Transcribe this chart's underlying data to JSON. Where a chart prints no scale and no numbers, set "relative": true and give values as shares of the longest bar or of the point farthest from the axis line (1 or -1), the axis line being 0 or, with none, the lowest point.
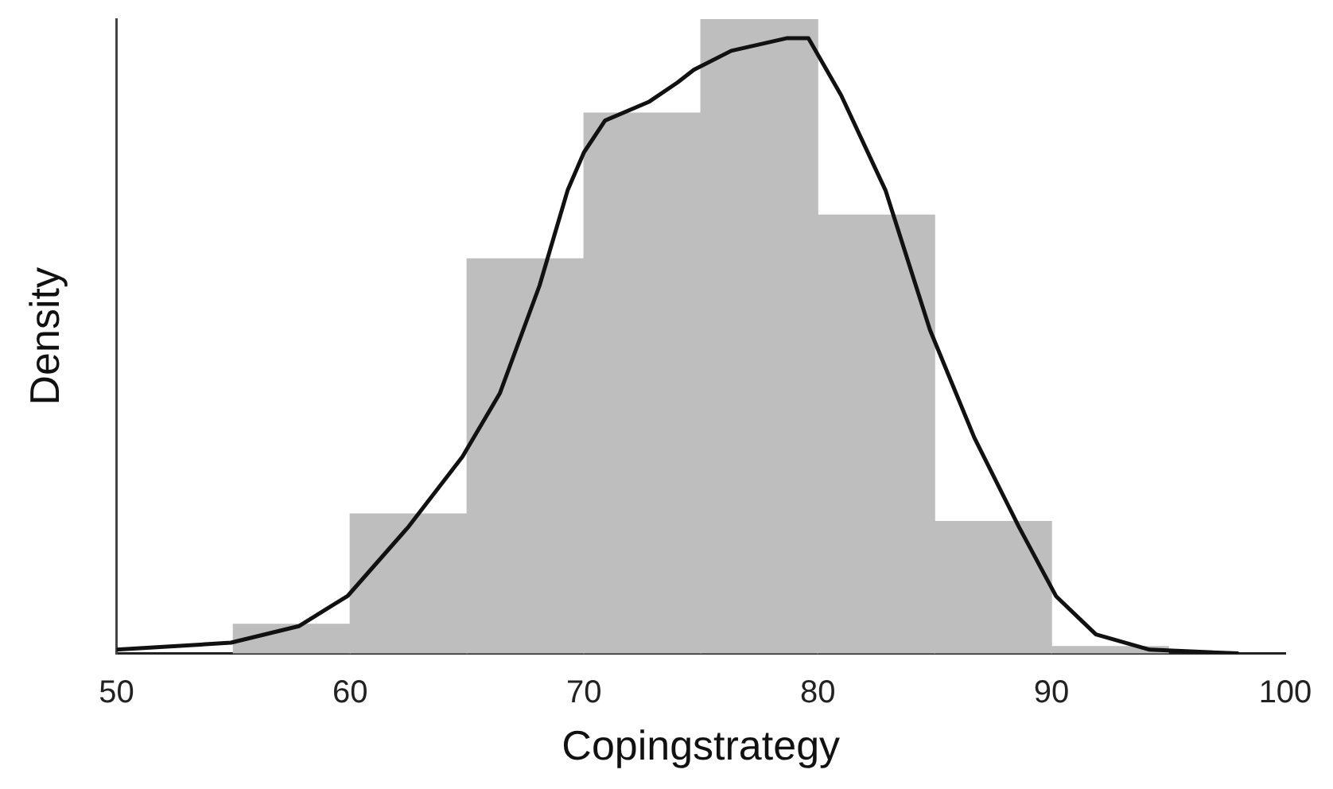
{
  "chart_data": {
    "type": "histogram",
    "xlabel": "Copingstrategy",
    "ylabel": "Density",
    "relative": true,
    "bins": [
      55,
      60,
      65,
      70,
      75,
      80,
      85,
      90,
      95
    ],
    "values": [
      0.046,
      0.22,
      0.622,
      0.852,
      1,
      0.691,
      0.208,
      0.011
    ],
    "color": "#bebebe",
    "series": [
      {
        "type": "line",
        "color": "#111111",
        "marker": "none",
        "x": [
          50,
          54.9,
          57.8,
          59.9,
          62.5,
          64.8,
          66.4,
          68.1,
          69.3,
          70,
          70.9,
          72.8,
          74,
          74.7,
          76.3,
          78.7,
          79.6,
          81,
          82.9,
          84.8,
          86.7,
          88.6,
          90.2,
          91.9,
          94.2,
          98
        ],
        "values": [
          0.006,
          0.017,
          0.043,
          0.091,
          0.2,
          0.31,
          0.41,
          0.58,
          0.73,
          0.79,
          0.84,
          0.87,
          0.9,
          0.92,
          0.95,
          0.97,
          0.97,
          0.88,
          0.73,
          0.51,
          0.34,
          0.2,
          0.09,
          0.03,
          0.006,
          0
        ]
      }
    ],
    "xlim": [
      50,
      100
    ],
    "xticks": [
      50,
      60,
      70,
      80,
      90,
      100
    ],
    "grid": false,
    "legend": false
  }
}
